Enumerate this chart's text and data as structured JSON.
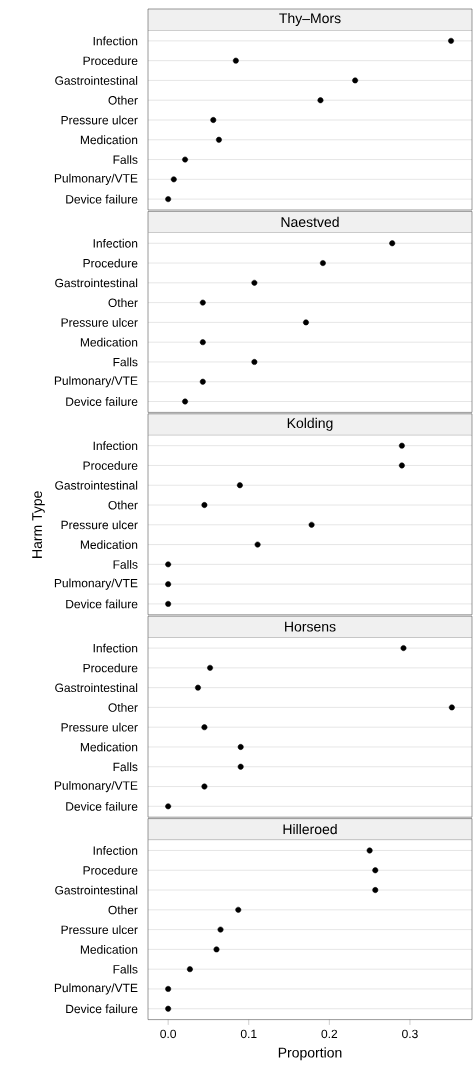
{
  "chart_data": [
    {
      "type": "scatter",
      "title": "Thy–Mors",
      "categories": [
        "Infection",
        "Procedure",
        "Gastrointestinal",
        "Other",
        "Pressure ulcer",
        "Medication",
        "Falls",
        "Pulmonary/VTE",
        "Device failure"
      ],
      "values": [
        0.351,
        0.084,
        0.232,
        0.189,
        0.056,
        0.063,
        0.021,
        0.007,
        0
      ],
      "color": "#000000",
      "orientation": "horizontal",
      "xlim": [
        -0.025,
        0.377
      ],
      "grid": "y",
      "tick_labels": "y"
    },
    {
      "type": "scatter",
      "title": "Naestved",
      "categories": [
        "Infection",
        "Procedure",
        "Gastrointestinal",
        "Other",
        "Pressure ulcer",
        "Medication",
        "Falls",
        "Pulmonary/VTE",
        "Device failure"
      ],
      "values": [
        0.278,
        0.192,
        0.107,
        0.043,
        0.171,
        0.043,
        0.107,
        0.043,
        0.021
      ],
      "color": "#000000",
      "orientation": "horizontal",
      "xlim": [
        -0.025,
        0.377
      ],
      "grid": "y",
      "tick_labels": "y"
    },
    {
      "type": "scatter",
      "title": "Kolding",
      "ylabel": "Harm Type",
      "categories": [
        "Infection",
        "Procedure",
        "Gastrointestinal",
        "Other",
        "Pressure ulcer",
        "Medication",
        "Falls",
        "Pulmonary/VTE",
        "Device failure"
      ],
      "values": [
        0.29,
        0.29,
        0.089,
        0.045,
        0.178,
        0.111,
        0,
        0,
        0
      ],
      "color": "#000000",
      "orientation": "horizontal",
      "xlim": [
        -0.025,
        0.377
      ],
      "grid": "y",
      "tick_labels": "y"
    },
    {
      "type": "scatter",
      "title": "Horsens",
      "categories": [
        "Infection",
        "Procedure",
        "Gastrointestinal",
        "Other",
        "Pressure ulcer",
        "Medication",
        "Falls",
        "Pulmonary/VTE",
        "Device failure"
      ],
      "values": [
        0.292,
        0.052,
        0.037,
        0.352,
        0.045,
        0.09,
        0.09,
        0.045,
        0
      ],
      "color": "#000000",
      "orientation": "horizontal",
      "xlim": [
        -0.025,
        0.377
      ],
      "grid": "y",
      "tick_labels": "y"
    },
    {
      "type": "scatter",
      "title": "Hilleroed",
      "xlabel": "Proportion",
      "categories": [
        "Infection",
        "Procedure",
        "Gastrointestinal",
        "Other",
        "Pressure ulcer",
        "Medication",
        "Falls",
        "Pulmonary/VTE",
        "Device failure"
      ],
      "values": [
        0.25,
        0.257,
        0.257,
        0.087,
        0.065,
        0.06,
        0.027,
        0,
        0
      ],
      "color": "#000000",
      "orientation": "horizontal",
      "xlim": [
        -0.025,
        0.377
      ],
      "xticks": [
        "0.0",
        0.1,
        0.2,
        0.3
      ],
      "grid": "y"
    }
  ]
}
